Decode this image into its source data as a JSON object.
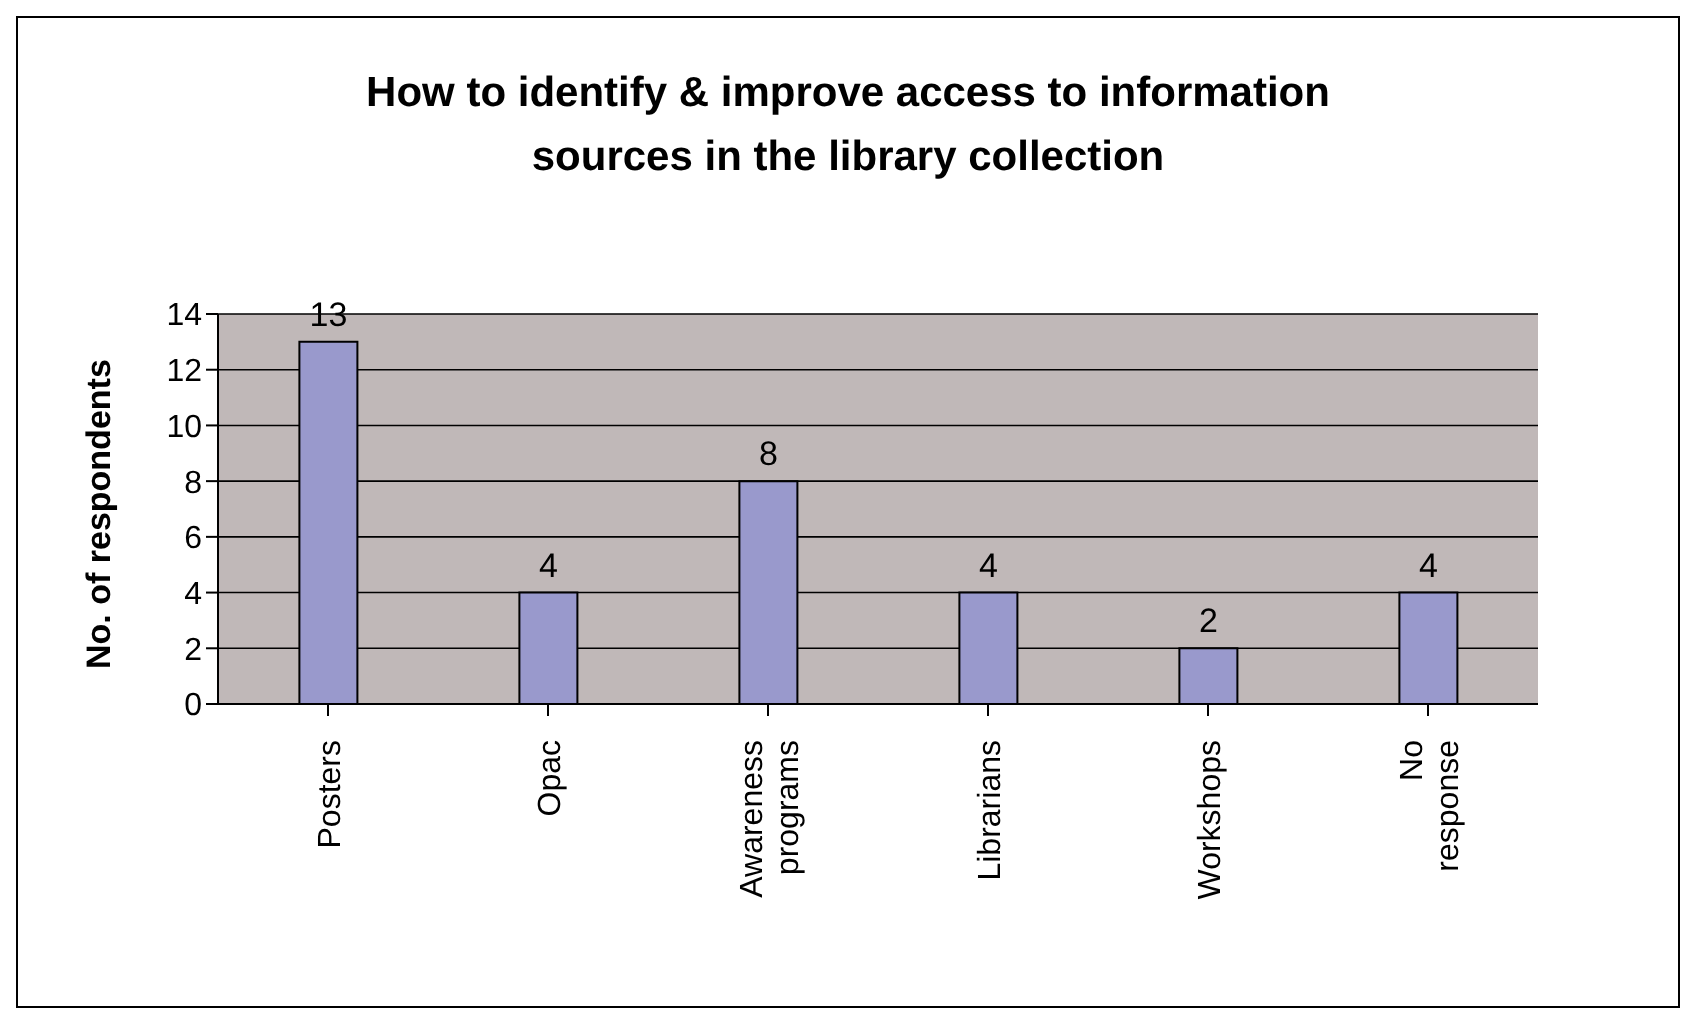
{
  "chart_data": {
    "type": "bar",
    "title": "How to identify & improve access to information sources in the library collection",
    "ylabel": "No. of respondents",
    "categories": [
      "Posters",
      "Opac",
      "Awareness programs",
      "Librarians",
      "Workshops",
      "No response"
    ],
    "values": [
      13,
      4,
      8,
      4,
      2,
      4
    ],
    "color": "#9999cc",
    "ylim": [
      0,
      14
    ],
    "yticks": [
      0,
      2,
      4,
      6,
      8,
      10,
      12,
      14
    ],
    "grid": "y",
    "data_labels": true
  }
}
